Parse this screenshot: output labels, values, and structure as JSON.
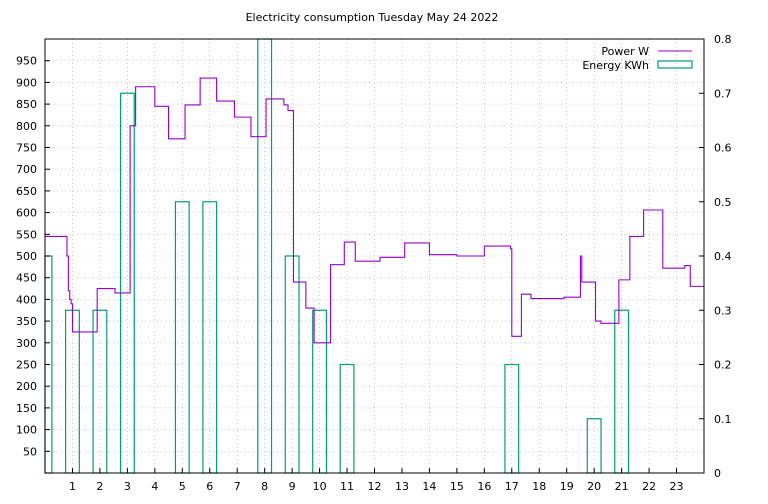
{
  "chart_data": {
    "type": "line",
    "title": "Electricity consumption Tuesday May 24 2022",
    "xlabel": "",
    "ylabel": "",
    "y2label": "",
    "xlim": [
      0,
      24
    ],
    "ylim": [
      0,
      1000
    ],
    "y2lim": [
      0,
      0.8
    ],
    "grid": true,
    "legend_position": "top-right",
    "x_ticks": [
      1,
      2,
      3,
      4,
      5,
      6,
      7,
      8,
      9,
      10,
      11,
      12,
      13,
      14,
      15,
      16,
      17,
      18,
      19,
      20,
      21,
      22,
      23
    ],
    "y_ticks": [
      50,
      100,
      150,
      200,
      250,
      300,
      350,
      400,
      450,
      500,
      550,
      600,
      650,
      700,
      750,
      800,
      850,
      900,
      950
    ],
    "y2_ticks": [
      0,
      0.1,
      0.2,
      0.3,
      0.4,
      0.5,
      0.6,
      0.7,
      0.8
    ],
    "series": [
      {
        "name": "Power W",
        "axis": "left",
        "style": "steps",
        "color": "#9400d3",
        "x": [
          0.0,
          0.8,
          0.8,
          0.85,
          0.9,
          0.95,
          1.0,
          1.2,
          1.9,
          2.5,
          2.55,
          3.1,
          3.1,
          3.3,
          3.65,
          4.0,
          4.5,
          5.1,
          5.65,
          6.25,
          6.9,
          7.5,
          8.05,
          8.7,
          8.85,
          9.05,
          9.3,
          9.5,
          9.8,
          10.4,
          10.9,
          11.3,
          12.2,
          13.1,
          14.0,
          15.0,
          16.0,
          16.95,
          17.0,
          17.35,
          17.7,
          18.9,
          19.5,
          19.55,
          20.05,
          20.25,
          20.9,
          21.0,
          21.3,
          21.8,
          22.5,
          23.3,
          23.5
        ],
        "y": [
          545,
          545,
          500,
          420,
          400,
          390,
          325,
          325,
          425,
          425,
          415,
          507,
          800,
          890,
          890,
          845,
          770,
          848,
          910,
          857,
          820,
          775,
          862,
          848,
          835,
          440,
          440,
          380,
          300,
          480,
          532,
          488,
          497,
          530,
          503,
          500,
          523,
          517,
          315,
          412,
          402,
          405,
          500,
          440,
          350,
          345,
          445,
          445,
          545,
          606,
          472,
          478,
          430
        ]
      },
      {
        "name": "Energy KWh",
        "axis": "right",
        "style": "boxes",
        "color": "#009e73",
        "x": [
          0,
          1,
          2,
          3,
          5,
          6,
          8,
          9,
          10,
          11,
          17,
          20,
          21
        ],
        "values": [
          0.4,
          0.3,
          0.3,
          0.7,
          0.5,
          0.5,
          0.8,
          0.4,
          0.3,
          0.2,
          0.2,
          0.1,
          0.3
        ]
      }
    ]
  }
}
